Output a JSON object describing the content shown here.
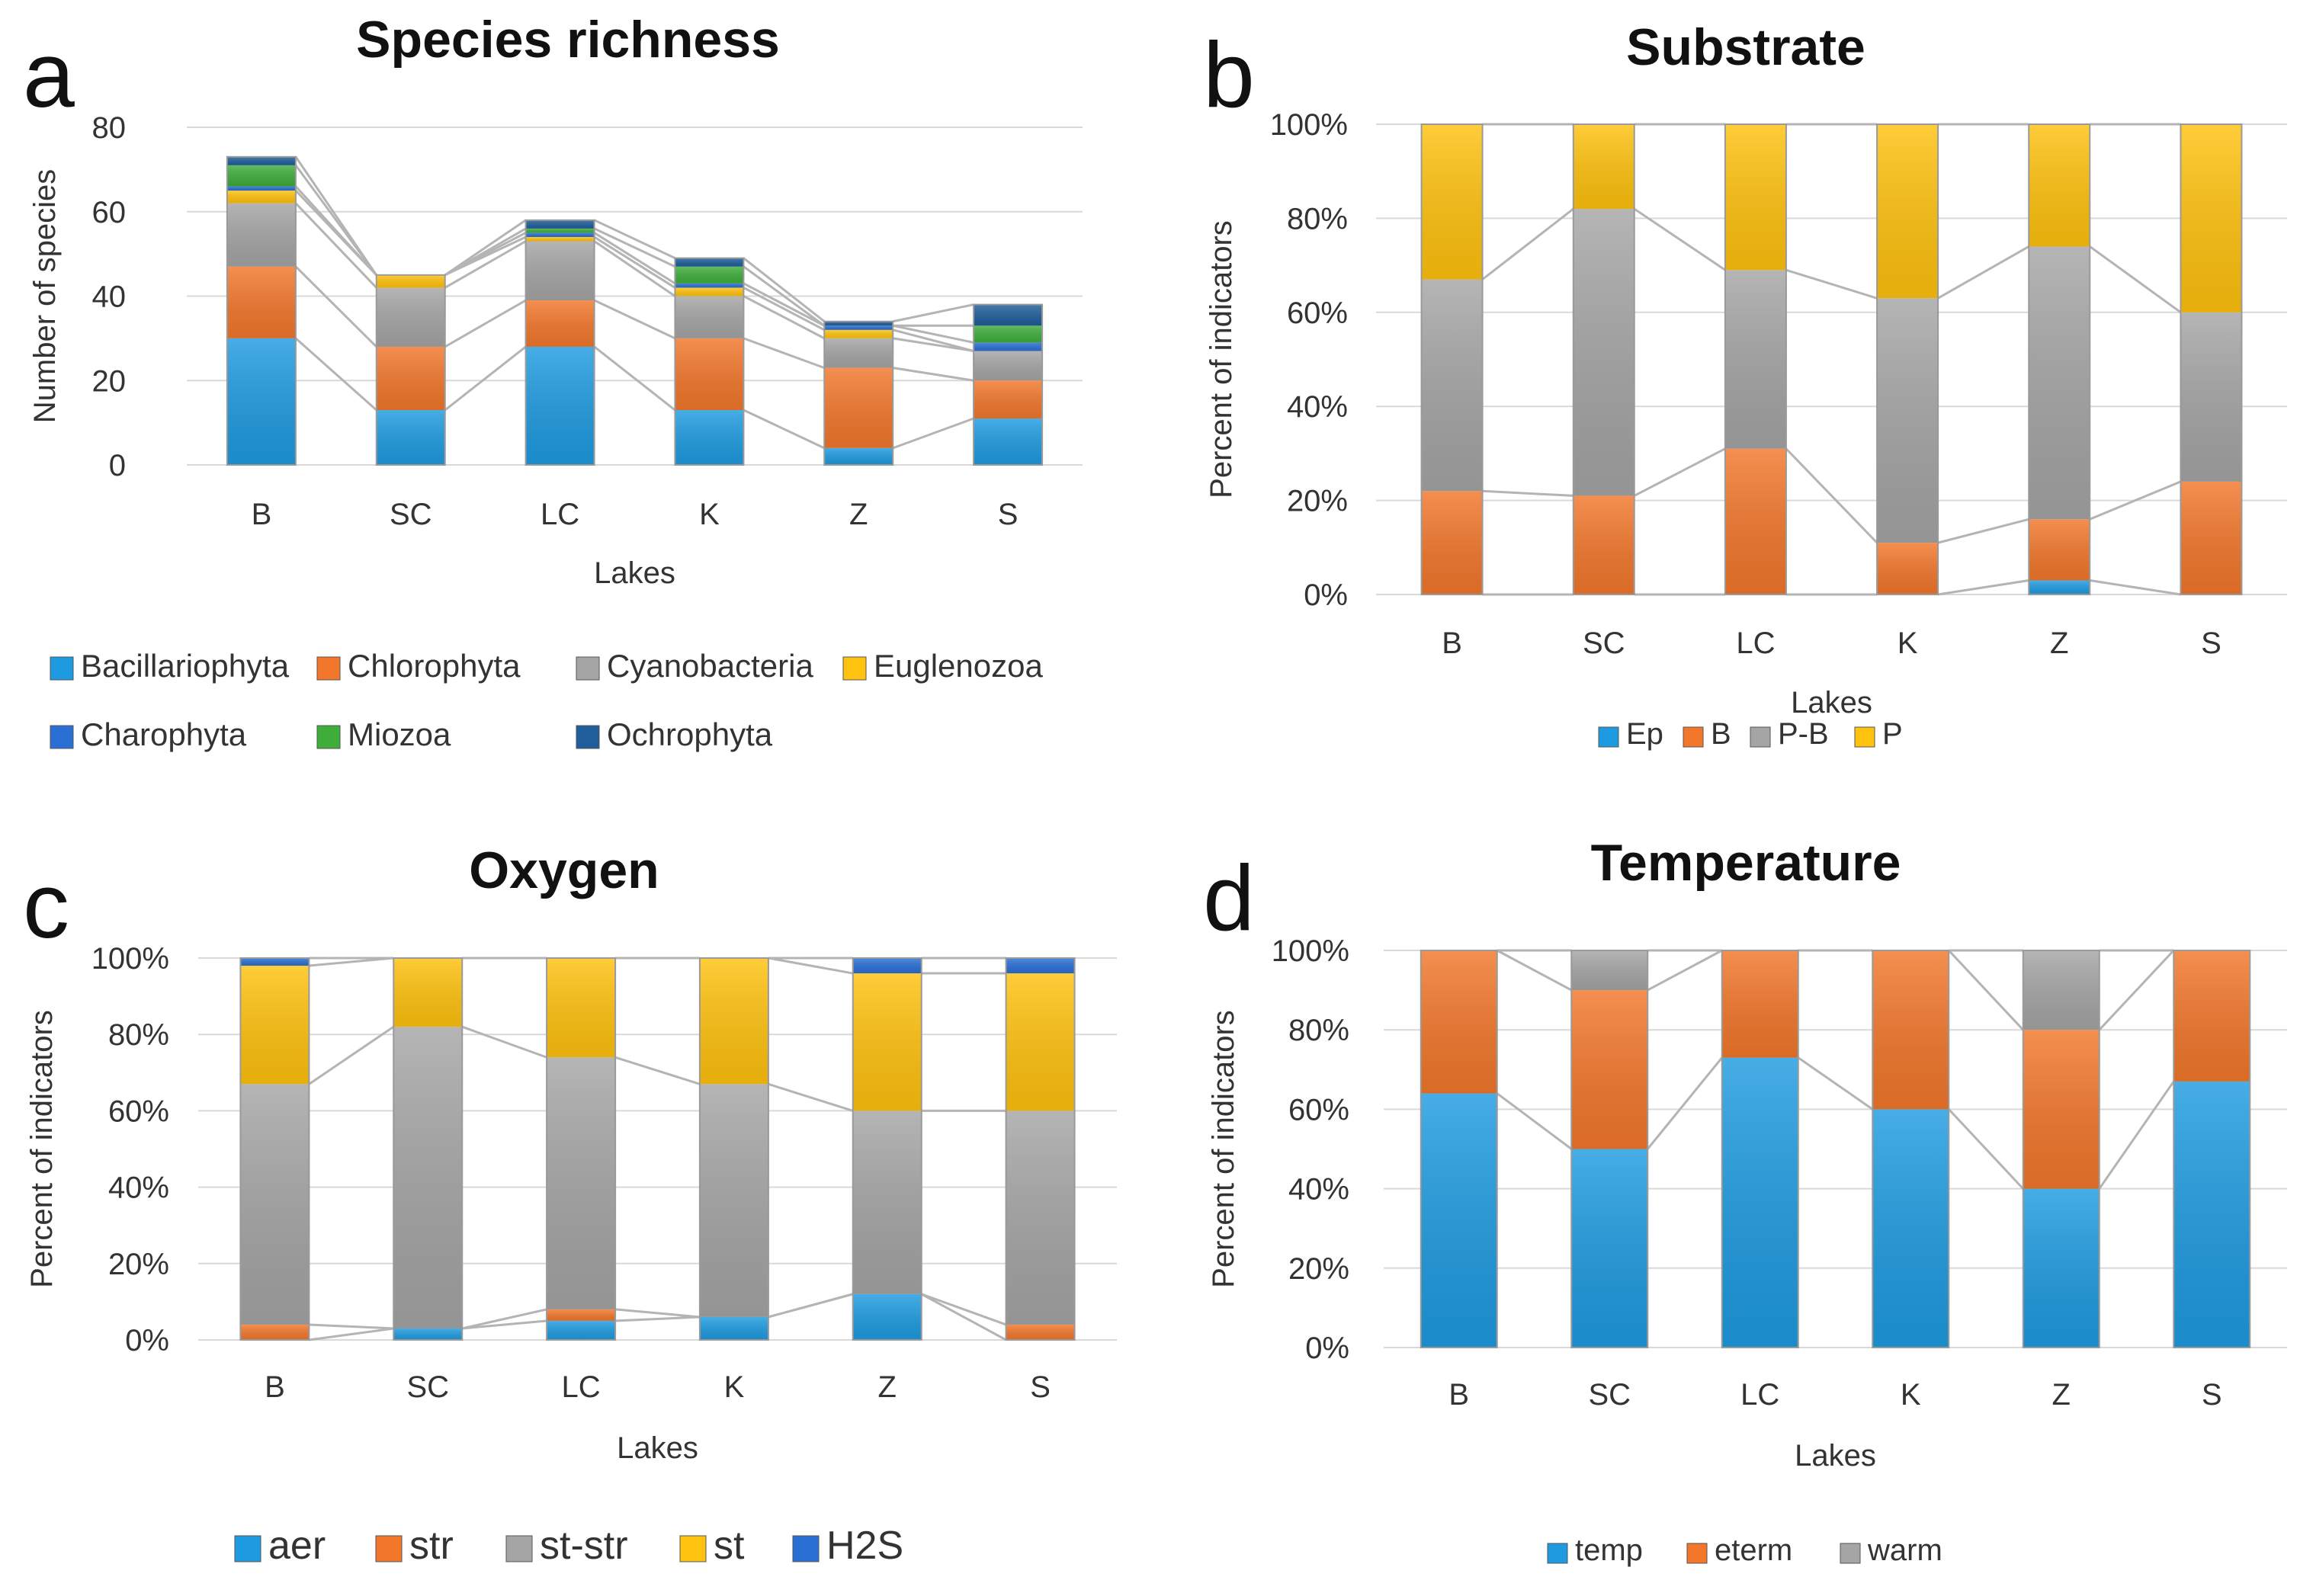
{
  "figure": {
    "colors": {
      "Bacillariophyta": "#1E9BE0",
      "Chlorophyta": "#F2772B",
      "Cyanobacteria": "#A5A5A5",
      "Euglenozoa": "#FFC20E",
      "Charophyta": "#2A6FD4",
      "Miozoa": "#3EAD3A",
      "Ochrophyta": "#1F5E9A",
      "Ep": "#1E9BE0",
      "B": "#F2772B",
      "P-B": "#A5A5A5",
      "P": "#FFC20E",
      "aer": "#1E9BE0",
      "str": "#F2772B",
      "st-str": "#A5A5A5",
      "st": "#FFC20E",
      "H2S": "#2A6FD4",
      "temp": "#1E9BE0",
      "eterm": "#F2772B",
      "warm": "#A5A5A5",
      "connector": "#B4B4B4",
      "gridline": "#D9D9D9"
    }
  },
  "chart_data": [
    {
      "panel_letter": "a",
      "type": "bar",
      "stacked": true,
      "title": "Species richness",
      "xlabel": "Lakes",
      "ylabel": "Number of species",
      "categories": [
        "B",
        "SC",
        "LC",
        "K",
        "Z",
        "S"
      ],
      "ylim": [
        0,
        80
      ],
      "yticks": [
        "0",
        "20",
        "40",
        "60",
        "80"
      ],
      "series": [
        {
          "name": "Bacillariophyta",
          "values": [
            30,
            13,
            28,
            13,
            4,
            11
          ]
        },
        {
          "name": "Chlorophyta",
          "values": [
            17,
            15,
            11,
            17,
            19,
            9
          ]
        },
        {
          "name": "Cyanobacteria",
          "values": [
            15,
            14,
            14,
            10,
            7,
            7
          ]
        },
        {
          "name": "Euglenozoa",
          "values": [
            3,
            3,
            1,
            2,
            2,
            0
          ]
        },
        {
          "name": "Charophyta",
          "values": [
            1,
            0,
            1,
            1,
            1,
            2
          ]
        },
        {
          "name": "Miozoa",
          "values": [
            5,
            0,
            1,
            4,
            0,
            4
          ]
        },
        {
          "name": "Ochrophyta",
          "values": [
            2,
            0,
            2,
            2,
            1,
            5
          ]
        }
      ],
      "legend": [
        "Bacillariophyta",
        "Chlorophyta",
        "Cyanobacteria",
        "Euglenozoa",
        "Charophyta",
        "Miozoa",
        "Ochrophyta"
      ]
    },
    {
      "panel_letter": "b",
      "type": "bar",
      "stacked": true,
      "percent": true,
      "title": "Substrate",
      "xlabel": "Lakes",
      "ylabel": "Percent of indicators",
      "categories": [
        "B",
        "SC",
        "LC",
        "K",
        "Z",
        "S"
      ],
      "ylim": [
        0,
        100
      ],
      "yticks": [
        "0%",
        "20%",
        "40%",
        "60%",
        "80%",
        "100%"
      ],
      "series": [
        {
          "name": "Ep",
          "values": [
            0,
            0,
            0,
            0,
            3,
            0
          ]
        },
        {
          "name": "B",
          "values": [
            22,
            21,
            31,
            11,
            13,
            24
          ]
        },
        {
          "name": "P-B",
          "values": [
            45,
            61,
            38,
            52,
            58,
            36
          ]
        },
        {
          "name": "P",
          "values": [
            33,
            18,
            31,
            37,
            26,
            40
          ]
        }
      ],
      "legend": [
        "Ep",
        "B",
        "P-B",
        "P"
      ]
    },
    {
      "panel_letter": "c",
      "type": "bar",
      "stacked": true,
      "percent": true,
      "title": "Oxygen",
      "xlabel": "Lakes",
      "ylabel": "Percent of indicators",
      "categories": [
        "B",
        "SC",
        "LC",
        "K",
        "Z",
        "S"
      ],
      "ylim": [
        0,
        100
      ],
      "yticks": [
        "0%",
        "20%",
        "40%",
        "60%",
        "80%",
        "100%"
      ],
      "series": [
        {
          "name": "aer",
          "values": [
            0,
            3,
            5,
            6,
            12,
            0
          ]
        },
        {
          "name": "str",
          "values": [
            4,
            0,
            3,
            0,
            0,
            4
          ]
        },
        {
          "name": "st-str",
          "values": [
            63,
            79,
            66,
            61,
            48,
            56
          ]
        },
        {
          "name": "st",
          "values": [
            31,
            18,
            26,
            33,
            36,
            36
          ]
        },
        {
          "name": "H2S",
          "values": [
            2,
            0,
            0,
            0,
            4,
            4
          ]
        }
      ],
      "legend": [
        "aer",
        "str",
        "st-str",
        "st",
        "H2S"
      ]
    },
    {
      "panel_letter": "d",
      "type": "bar",
      "stacked": true,
      "percent": true,
      "title": "Temperature",
      "xlabel": "Lakes",
      "ylabel": "Percent of indicators",
      "categories": [
        "B",
        "SC",
        "LC",
        "K",
        "Z",
        "S"
      ],
      "ylim": [
        0,
        100
      ],
      "yticks": [
        "0%",
        "20%",
        "40%",
        "60%",
        "80%",
        "100%"
      ],
      "series": [
        {
          "name": "temp",
          "values": [
            64,
            50,
            73,
            60,
            40,
            67
          ]
        },
        {
          "name": "eterm",
          "values": [
            36,
            40,
            27,
            40,
            40,
            33
          ]
        },
        {
          "name": "warm",
          "values": [
            0,
            10,
            0,
            0,
            20,
            0
          ]
        }
      ],
      "legend": [
        "temp",
        "eterm",
        "warm"
      ]
    }
  ]
}
